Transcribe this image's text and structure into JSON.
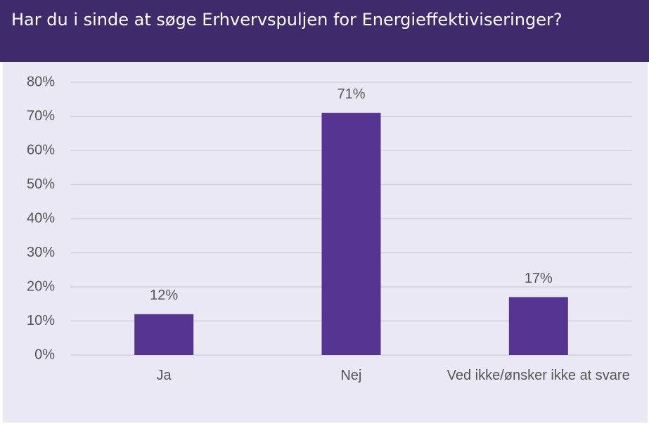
{
  "chart_data": {
    "type": "bar",
    "title": "Har du i sinde at søge Erhvervspuljen for Energieffektiviseringer?",
    "categories": [
      "Ja",
      "Nej",
      "Ved ikke/ønsker ikke at svare"
    ],
    "values": [
      12,
      71,
      17
    ],
    "value_labels": [
      "12%",
      "71%",
      "17%"
    ],
    "color": "#563592",
    "ylim": [
      0,
      80
    ],
    "yticks": [
      {
        "value": 0,
        "label": "0%"
      },
      {
        "value": 10,
        "label": "10%"
      },
      {
        "value": 20,
        "label": "20%"
      },
      {
        "value": 30,
        "label": "30%"
      },
      {
        "value": 40,
        "label": "40%"
      },
      {
        "value": 50,
        "label": "50%"
      },
      {
        "value": 60,
        "label": "60%"
      },
      {
        "value": 70,
        "label": "70%"
      },
      {
        "value": 80,
        "label": "80%"
      }
    ],
    "grid": true
  }
}
